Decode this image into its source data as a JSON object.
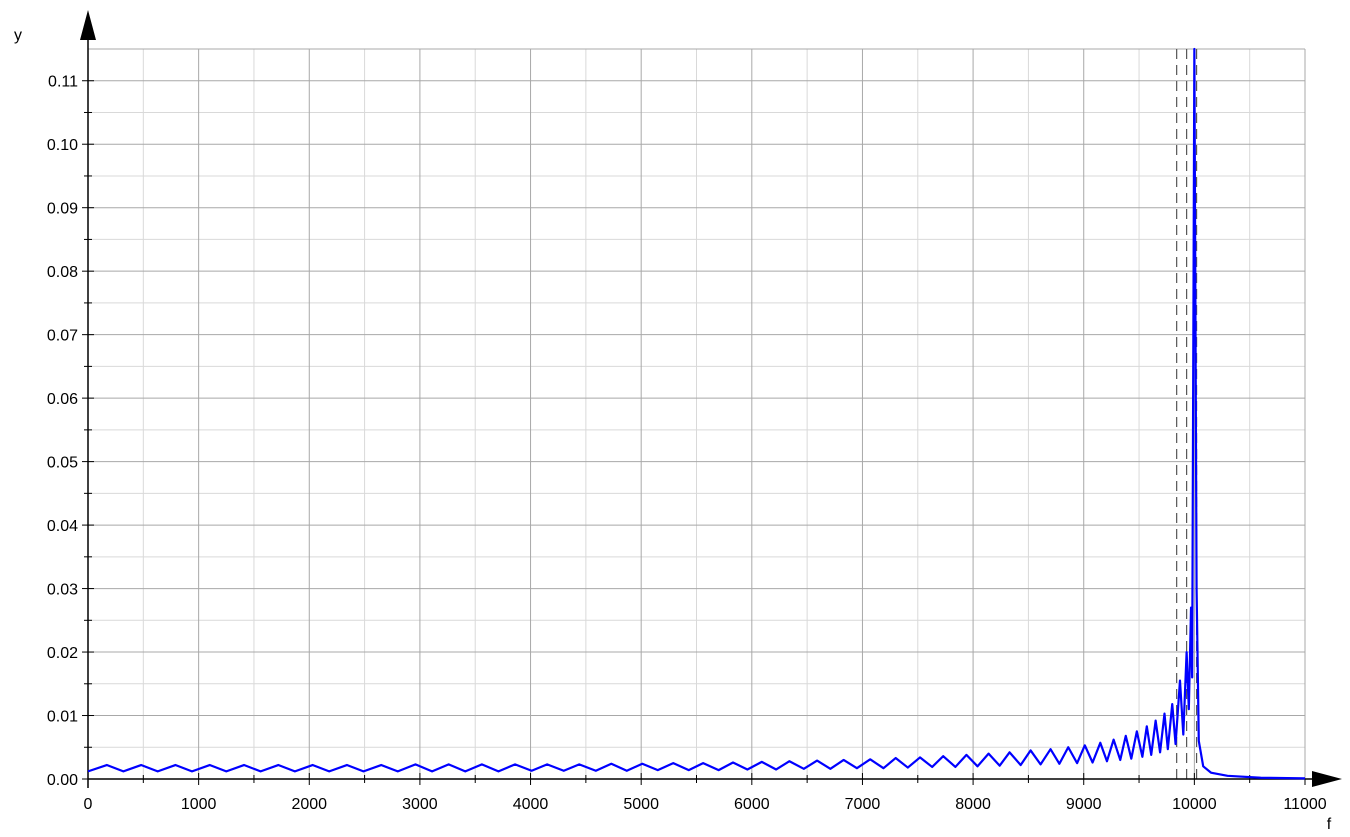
{
  "chart_data": {
    "type": "line",
    "x_label": "f",
    "y_label": "y",
    "xlim": [
      0,
      11000
    ],
    "ylim": [
      0,
      0.115
    ],
    "xticks": [
      0,
      1000,
      2000,
      3000,
      4000,
      5000,
      6000,
      7000,
      8000,
      9000,
      10000,
      11000
    ],
    "yticks": [
      {
        "value": 0,
        "label": "0.00"
      },
      0.01,
      0.02,
      0.03,
      0.04,
      0.05,
      0.06,
      0.07,
      0.08,
      0.09,
      {
        "value": 0.1,
        "label": "0.10"
      },
      0.11
    ],
    "xminorticks": [
      500,
      1500,
      2500,
      3500,
      4500,
      5500,
      6500,
      7500,
      8500,
      9500,
      10500
    ],
    "yminorticks": [
      0.005,
      0.015,
      0.025,
      0.035,
      0.045,
      0.055,
      0.065,
      0.075,
      0.085,
      0.095,
      0.105
    ],
    "grid": true,
    "reference_lines": [
      9840,
      9930,
      10020
    ],
    "reference_color": "#555555",
    "series": [
      {
        "color": "#0000ff",
        "x": [
          0,
          170,
          320,
          480,
          630,
          790,
          940,
          1100,
          1250,
          1410,
          1560,
          1720,
          1870,
          2030,
          2180,
          2340,
          2490,
          2650,
          2800,
          2960,
          3110,
          3260,
          3410,
          3560,
          3710,
          3860,
          4010,
          4150,
          4300,
          4440,
          4590,
          4730,
          4870,
          5010,
          5150,
          5290,
          5430,
          5560,
          5700,
          5830,
          5960,
          6090,
          6220,
          6340,
          6470,
          6590,
          6710,
          6830,
          6950,
          7070,
          7190,
          7300,
          7410,
          7520,
          7630,
          7730,
          7840,
          7940,
          8040,
          8140,
          8240,
          8330,
          8430,
          8520,
          8610,
          8700,
          8780,
          8860,
          8940,
          9010,
          9080,
          9150,
          9210,
          9270,
          9330,
          9380,
          9430,
          9480,
          9530,
          9570,
          9610,
          9650,
          9690,
          9730,
          9760,
          9800,
          9830,
          9870,
          9900,
          9930,
          9950,
          9970,
          9980,
          10000,
          10020,
          10040,
          10080,
          10150,
          10300,
          10600,
          11000
        ],
        "values": [
          0.0012,
          0.0022,
          0.0012,
          0.0022,
          0.0012,
          0.0022,
          0.0012,
          0.0022,
          0.0012,
          0.0022,
          0.0012,
          0.0022,
          0.0012,
          0.0022,
          0.0012,
          0.0022,
          0.0012,
          0.0022,
          0.0012,
          0.0023,
          0.0012,
          0.0023,
          0.0012,
          0.0023,
          0.0012,
          0.0023,
          0.0013,
          0.0023,
          0.0013,
          0.0023,
          0.0013,
          0.0024,
          0.0013,
          0.0024,
          0.0014,
          0.0025,
          0.0014,
          0.0025,
          0.0014,
          0.0026,
          0.0015,
          0.0027,
          0.0015,
          0.0028,
          0.0016,
          0.0029,
          0.0016,
          0.003,
          0.0017,
          0.0031,
          0.0017,
          0.0033,
          0.0018,
          0.0034,
          0.0019,
          0.0036,
          0.0019,
          0.0038,
          0.002,
          0.004,
          0.0021,
          0.0042,
          0.0022,
          0.0045,
          0.0023,
          0.0047,
          0.0024,
          0.005,
          0.0025,
          0.0053,
          0.0026,
          0.0057,
          0.0028,
          0.0062,
          0.003,
          0.0068,
          0.0032,
          0.0075,
          0.0035,
          0.0083,
          0.0038,
          0.0092,
          0.0042,
          0.0103,
          0.0047,
          0.0118,
          0.0055,
          0.0155,
          0.007,
          0.02,
          0.011,
          0.027,
          0.016,
          0.115,
          0.03,
          0.006,
          0.002,
          0.001,
          0.0005,
          0.0002,
          0.0001
        ]
      }
    ]
  }
}
